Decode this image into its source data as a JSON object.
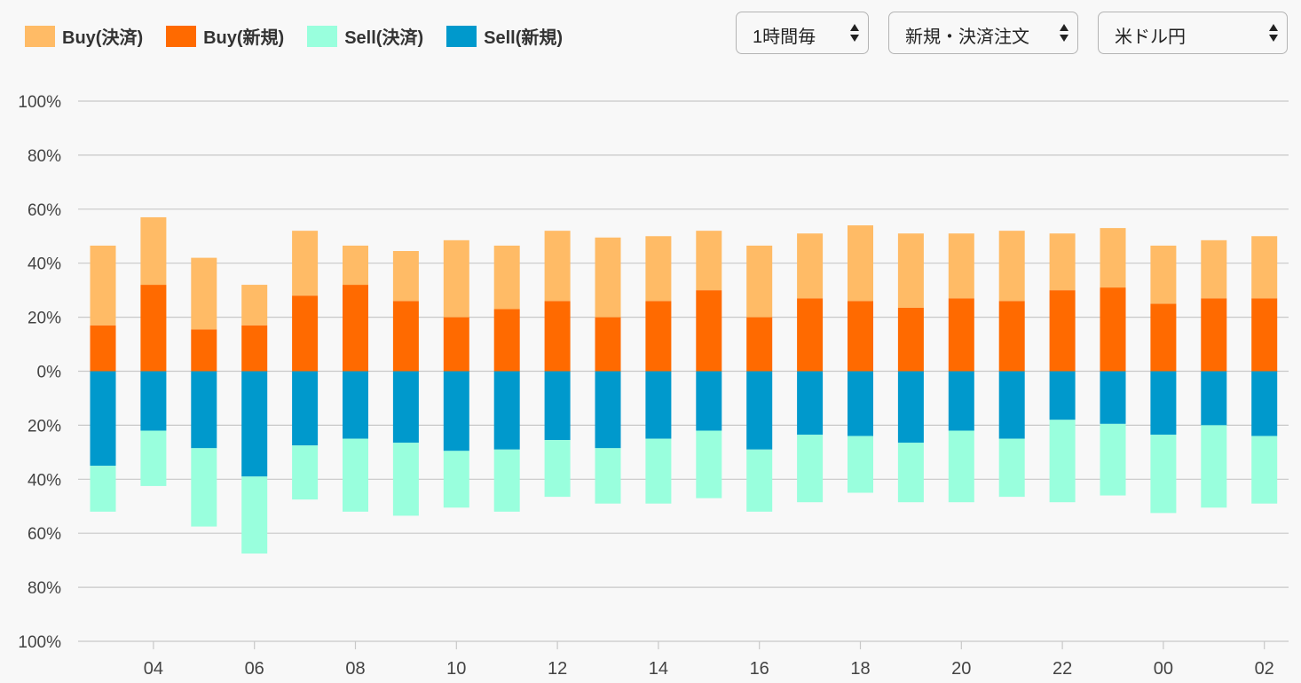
{
  "legend": [
    {
      "label": "Buy(決済)",
      "color": "#ffbb66"
    },
    {
      "label": "Buy(新規)",
      "color": "#ff6a00"
    },
    {
      "label": "Sell(決済)",
      "color": "#99ffdd"
    },
    {
      "label": "Sell(新規)",
      "color": "#0099cc"
    }
  ],
  "controls": {
    "interval": "1時間毎",
    "order_type": "新規・決済注文",
    "currency_pair": "米ドル円"
  },
  "chart_data": {
    "type": "bar",
    "stacked": true,
    "diverging": true,
    "ylim": [
      -100,
      100
    ],
    "y_ticks": [
      "100%",
      "80%",
      "60%",
      "40%",
      "20%",
      "0%",
      "20%",
      "40%",
      "60%",
      "80%",
      "100%"
    ],
    "x_tick_labels": [
      "04",
      "06",
      "08",
      "10",
      "12",
      "14",
      "16",
      "18",
      "20",
      "22",
      "00",
      "02"
    ],
    "categories": [
      "03",
      "04",
      "05",
      "06",
      "07",
      "08",
      "09",
      "10",
      "11",
      "12",
      "13",
      "14",
      "15",
      "16",
      "17",
      "18",
      "19",
      "20",
      "21",
      "22",
      "23",
      "00",
      "01",
      "02"
    ],
    "series": [
      {
        "name": "Buy(新規)",
        "color": "#ff6a00",
        "values": [
          17,
          32,
          15.5,
          17,
          28,
          32,
          26,
          20,
          23,
          26,
          20,
          26,
          30,
          20,
          27,
          26,
          23.5,
          27,
          26,
          30,
          31,
          25,
          27,
          27
        ]
      },
      {
        "name": "Buy(決済)",
        "color": "#ffbb66",
        "values": [
          29.5,
          25,
          26.5,
          15,
          24,
          14.5,
          18.5,
          28.5,
          23.5,
          26,
          29.5,
          24,
          22,
          26.5,
          24,
          28,
          27.5,
          24,
          26,
          21,
          22,
          21.5,
          21.5,
          23
        ]
      },
      {
        "name": "Sell(新規)",
        "color": "#0099cc",
        "values": [
          -35,
          -22,
          -28.5,
          -39,
          -27.5,
          -25,
          -26.5,
          -29.5,
          -29,
          -25.5,
          -28.5,
          -25,
          -22,
          -29,
          -23.5,
          -24,
          -26.5,
          -22,
          -25,
          -18,
          -19.5,
          -23.5,
          -20,
          -24
        ]
      },
      {
        "name": "Sell(決済)",
        "color": "#99ffdd",
        "values": [
          -17,
          -20.5,
          -29,
          -28.5,
          -20,
          -27,
          -27,
          -21,
          -23,
          -21,
          -20.5,
          -24,
          -25,
          -23,
          -25,
          -21,
          -22,
          -26.5,
          -21.5,
          -30.5,
          -26.5,
          -29,
          -30.5,
          -25
        ]
      }
    ]
  }
}
